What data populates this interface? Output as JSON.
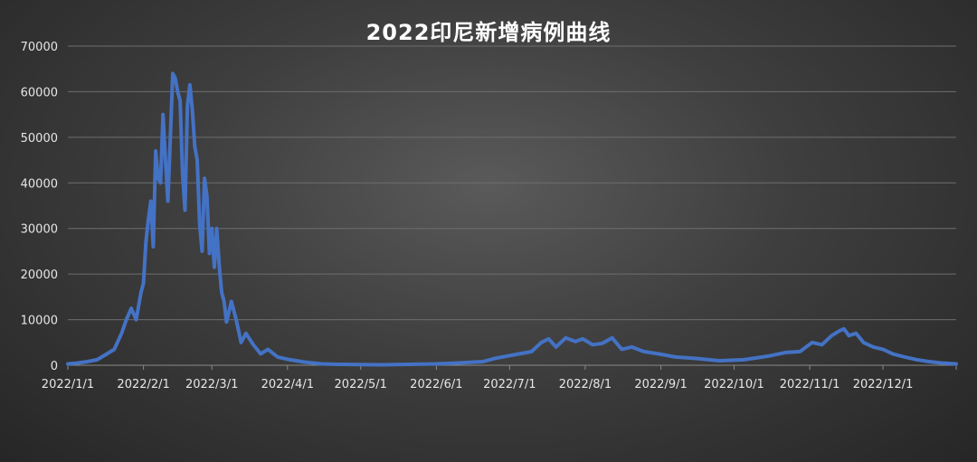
{
  "chart_data": {
    "type": "line",
    "title": "2022印尼新增病例曲线",
    "xlabel": "",
    "ylabel": "",
    "ylim": [
      0,
      70000
    ],
    "y_ticks": [
      0,
      10000,
      20000,
      30000,
      40000,
      50000,
      60000,
      70000
    ],
    "y_tick_labels": [
      "0",
      "10000",
      "20000",
      "30000",
      "40000",
      "50000",
      "60000",
      "70000"
    ],
    "x_range": [
      "2022-01-01",
      "2022-12-31"
    ],
    "x_tick_labels": [
      "2022/1/1",
      "2022/2/1",
      "2022/3/1",
      "2022/4/1",
      "2022/5/1",
      "2022/6/1",
      "2022/7/1",
      "2022/8/1",
      "2022/9/1",
      "2022/10/1",
      "2022/11/1",
      "2022/12/1"
    ],
    "x_tick_dates": [
      "2022-01-01",
      "2022-02-01",
      "2022-03-01",
      "2022-04-01",
      "2022-05-01",
      "2022-06-01",
      "2022-07-01",
      "2022-08-01",
      "2022-09-01",
      "2022-10-01",
      "2022-11-01",
      "2022-12-01"
    ],
    "grid": true,
    "legend": "none",
    "line_color": "#4472c4",
    "series": [
      {
        "x": [
          "2022-01-01",
          "2022-01-05",
          "2022-01-09",
          "2022-01-13",
          "2022-01-17",
          "2022-01-20",
          "2022-01-23",
          "2022-01-25",
          "2022-01-27",
          "2022-01-29",
          "2022-01-31",
          "2022-02-01",
          "2022-02-02",
          "2022-02-03",
          "2022-02-04",
          "2022-02-05",
          "2022-02-06",
          "2022-02-07",
          "2022-02-08",
          "2022-02-09",
          "2022-02-10",
          "2022-02-11",
          "2022-02-12",
          "2022-02-13",
          "2022-02-14",
          "2022-02-15",
          "2022-02-16",
          "2022-02-17",
          "2022-02-18",
          "2022-02-19",
          "2022-02-20",
          "2022-02-21",
          "2022-02-22",
          "2022-02-23",
          "2022-02-24",
          "2022-02-25",
          "2022-02-26",
          "2022-02-27",
          "2022-02-28",
          "2022-03-01",
          "2022-03-02",
          "2022-03-03",
          "2022-03-04",
          "2022-03-05",
          "2022-03-06",
          "2022-03-07",
          "2022-03-09",
          "2022-03-11",
          "2022-03-13",
          "2022-03-15",
          "2022-03-18",
          "2022-03-21",
          "2022-03-24",
          "2022-03-28",
          "2022-04-02",
          "2022-04-08",
          "2022-04-15",
          "2022-04-22",
          "2022-05-01",
          "2022-05-10",
          "2022-05-20",
          "2022-06-01",
          "2022-06-10",
          "2022-06-20",
          "2022-06-25",
          "2022-06-30",
          "2022-07-05",
          "2022-07-10",
          "2022-07-14",
          "2022-07-17",
          "2022-07-20",
          "2022-07-24",
          "2022-07-28",
          "2022-07-31",
          "2022-08-04",
          "2022-08-08",
          "2022-08-12",
          "2022-08-16",
          "2022-08-20",
          "2022-08-25",
          "2022-08-31",
          "2022-09-07",
          "2022-09-15",
          "2022-09-25",
          "2022-10-05",
          "2022-10-15",
          "2022-10-22",
          "2022-10-28",
          "2022-11-02",
          "2022-11-06",
          "2022-11-10",
          "2022-11-13",
          "2022-11-15",
          "2022-11-17",
          "2022-11-20",
          "2022-11-23",
          "2022-11-27",
          "2022-12-01",
          "2022-12-05",
          "2022-12-10",
          "2022-12-15",
          "2022-12-20",
          "2022-12-25",
          "2022-12-31"
        ],
        "y": [
          300,
          500,
          800,
          1200,
          2500,
          3500,
          7000,
          10000,
          12500,
          10000,
          16000,
          18000,
          27000,
          32000,
          36000,
          26000,
          47000,
          41000,
          40000,
          55000,
          45000,
          36000,
          50000,
          64000,
          63000,
          60000,
          58000,
          42000,
          34000,
          57000,
          61500,
          56000,
          48000,
          45000,
          31000,
          25000,
          41000,
          37000,
          24500,
          30000,
          21500,
          30000,
          22000,
          16000,
          14000,
          9500,
          14000,
          10000,
          5000,
          7000,
          4500,
          2500,
          3500,
          1800,
          1200,
          700,
          300,
          200,
          150,
          100,
          200,
          300,
          500,
          800,
          1500,
          2000,
          2500,
          3000,
          5000,
          5800,
          4000,
          6000,
          5200,
          5800,
          4500,
          4800,
          6000,
          3500,
          4000,
          3000,
          2500,
          1800,
          1500,
          1000,
          1200,
          2000,
          2800,
          3000,
          5000,
          4500,
          6500,
          7500,
          8000,
          6500,
          7000,
          5000,
          4000,
          3500,
          2500,
          1800,
          1200,
          800,
          500,
          300
        ]
      }
    ]
  }
}
